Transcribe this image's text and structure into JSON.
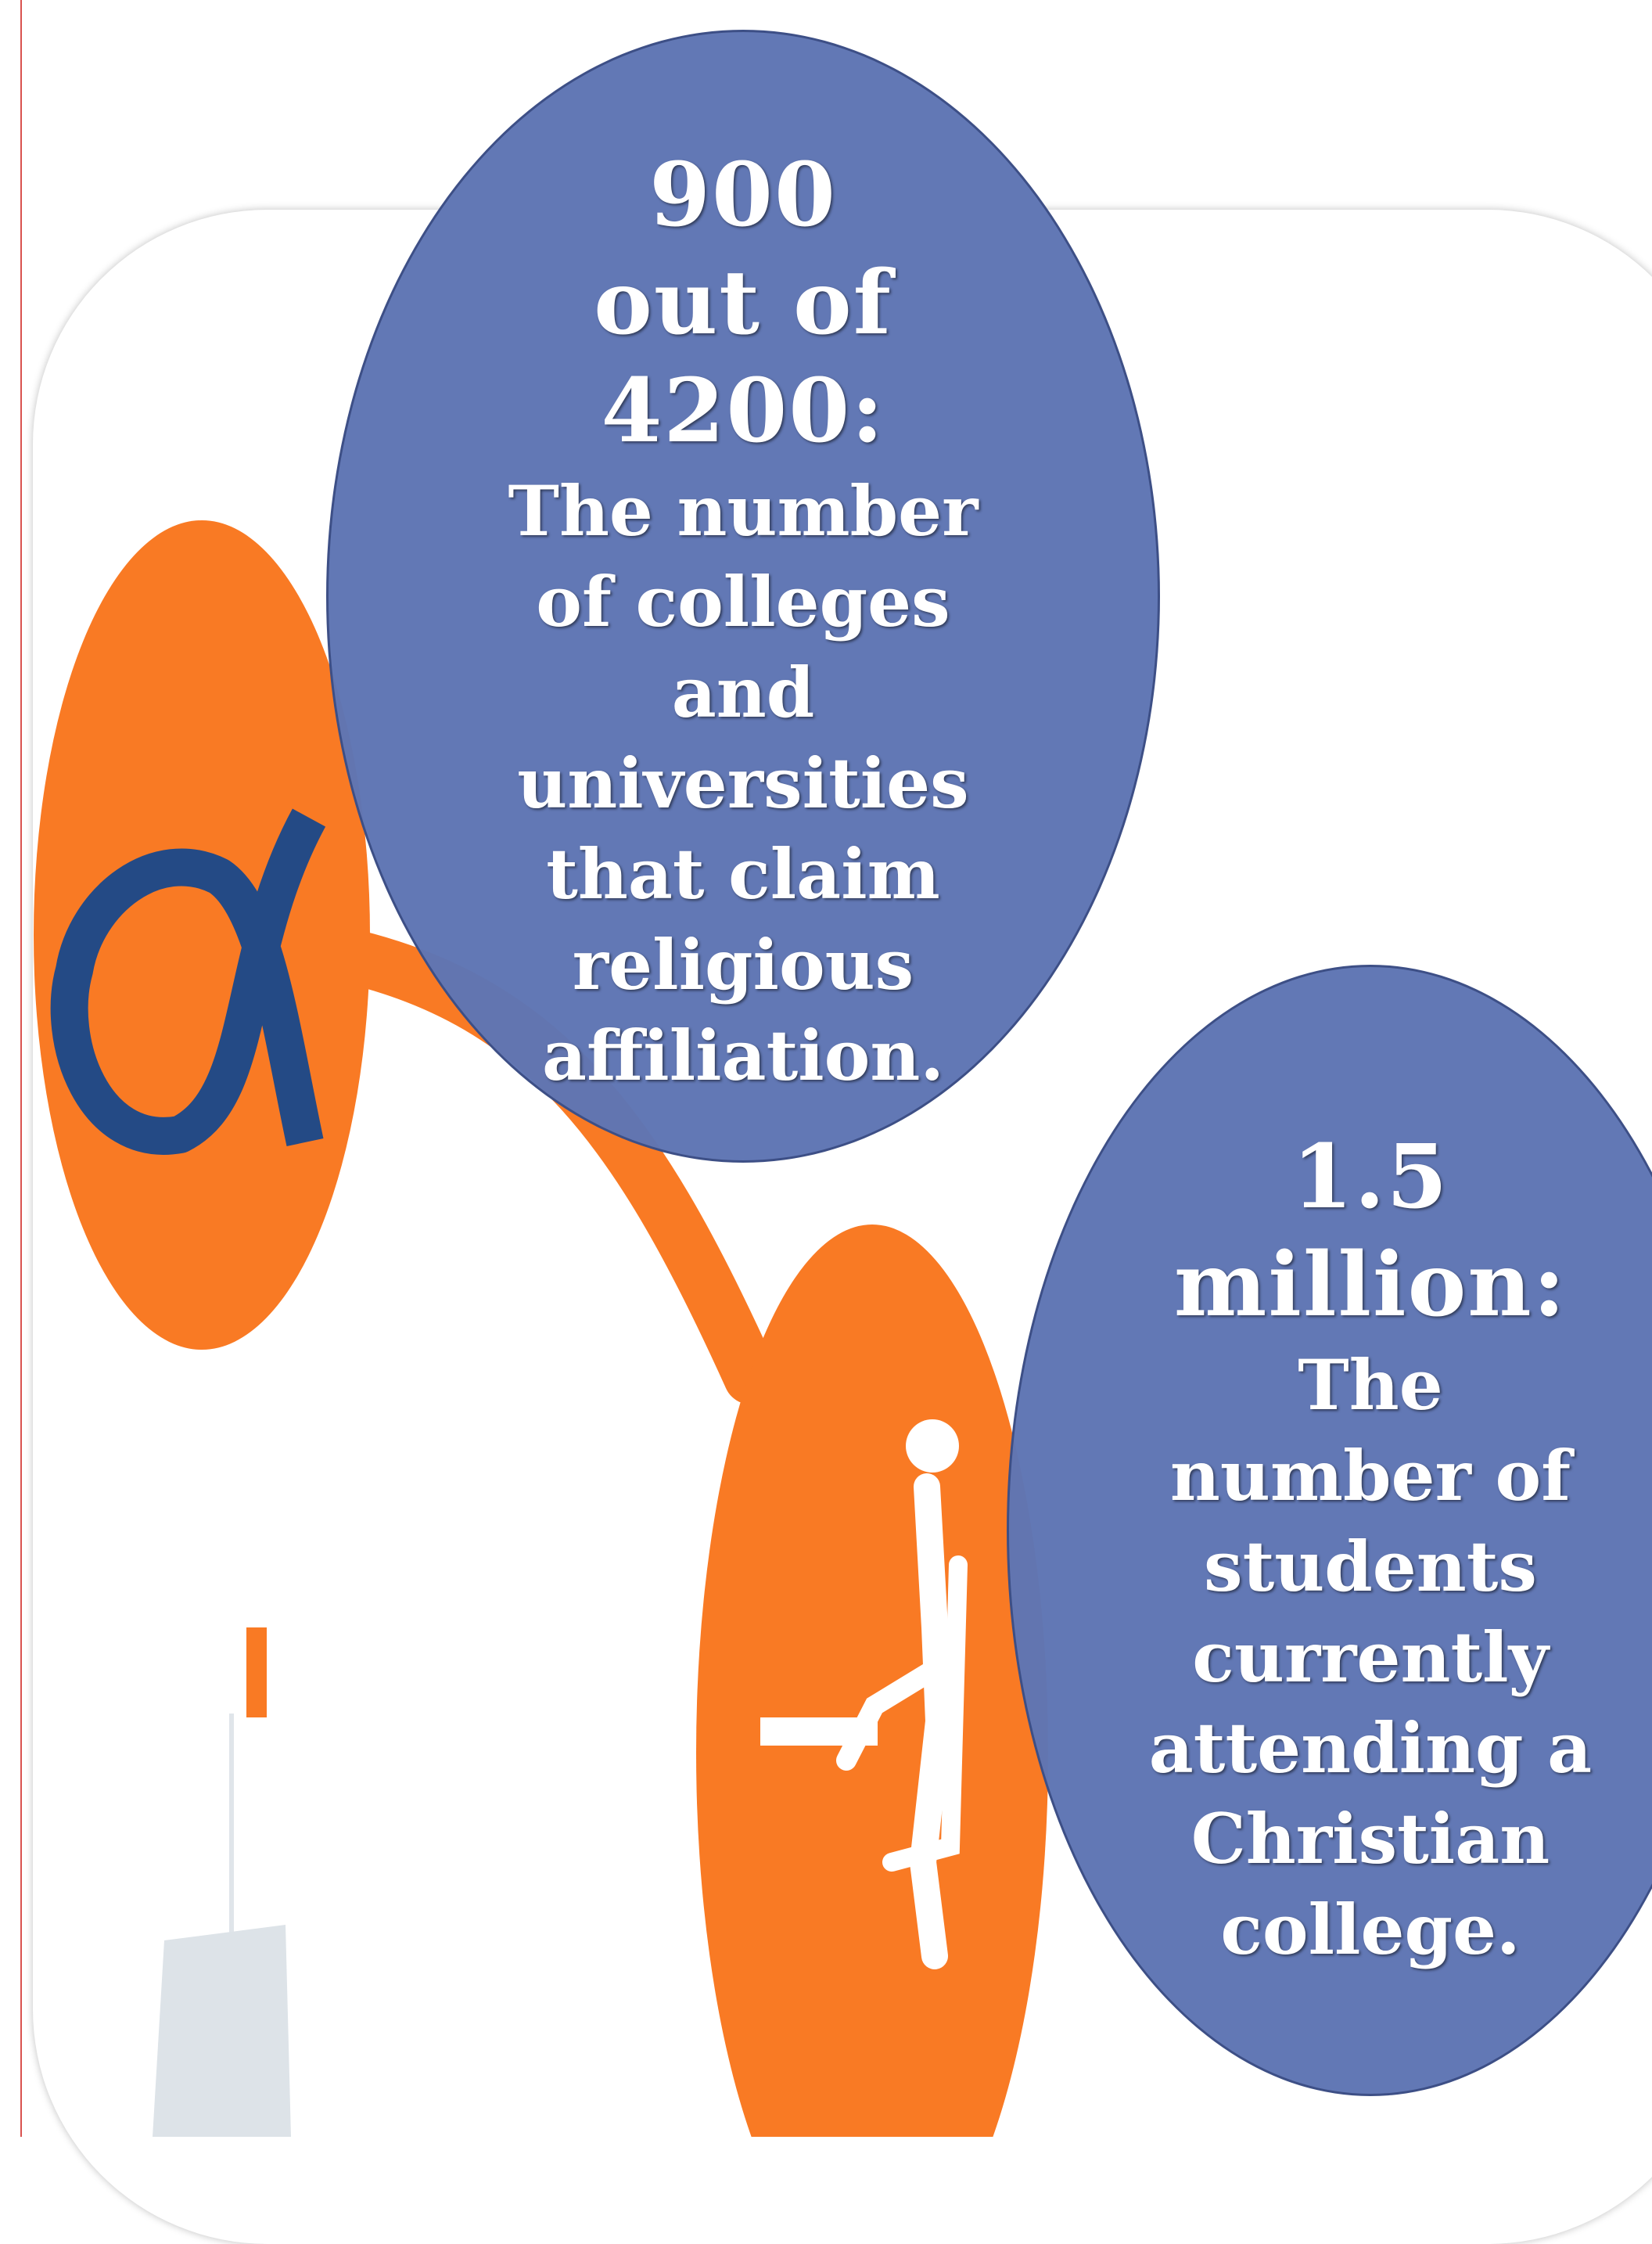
{
  "colors": {
    "accent_orange": "#f97a24",
    "navy": "#244a85",
    "bubble_blue": "#5f75b4",
    "flask_gray": "#dde3e8"
  },
  "icons": [
    "ichthys-icon",
    "desk-student-icon",
    "flask-icon"
  ],
  "stats": [
    {
      "number": "900\nout of\n4200:",
      "description": "The number\nof colleges\nand\nuniversities\nthat claim\nreligious\naffiliation."
    },
    {
      "number": "1.5\nmillion:",
      "description": "The\nnumber of\nstudents\ncurrently\nattending a\nChristian\ncollege."
    }
  ]
}
